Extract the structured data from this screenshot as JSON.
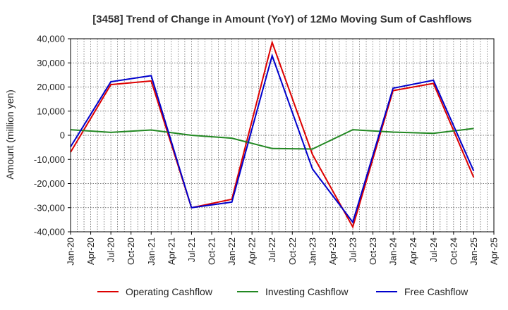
{
  "chart_data": {
    "type": "line",
    "title": "[3458]  Trend of Change in Amount (YoY) of 12Mo Moving Sum of Cashflows",
    "xlabel": "",
    "ylabel": "Amount (million yen)",
    "ylim": [
      -40000,
      40000
    ],
    "yticks": [
      40000,
      30000,
      20000,
      10000,
      0,
      -10000,
      -20000,
      -30000,
      -40000
    ],
    "ytick_labels": [
      "40,000",
      "30,000",
      "20,000",
      "10,000",
      "0",
      "-10,000",
      "-20,000",
      "-30,000",
      "-40,000"
    ],
    "xticks": [
      "Jan-20",
      "Apr-20",
      "Jul-20",
      "Oct-20",
      "Jan-21",
      "Apr-21",
      "Jul-21",
      "Oct-21",
      "Jan-22",
      "Apr-22",
      "Jul-22",
      "Oct-22",
      "Jan-23",
      "Apr-23",
      "Jul-23",
      "Oct-23",
      "Jan-24",
      "Apr-24",
      "Jul-24",
      "Oct-24",
      "Jan-25",
      "Apr-25"
    ],
    "grid": true,
    "legend_position": "bottom",
    "x_index": [
      0,
      2,
      4,
      6,
      8,
      10,
      12,
      14,
      16,
      18,
      20
    ],
    "series": [
      {
        "name": "Operating Cashflow",
        "color": "#dd0000",
        "values": [
          -7000,
          21000,
          22500,
          -30000,
          -26500,
          38500,
          -8000,
          -38000,
          18500,
          21500,
          -17500
        ]
      },
      {
        "name": "Investing Cashflow",
        "color": "#228822",
        "values": [
          2300,
          1200,
          2200,
          0,
          -1200,
          -5500,
          -5700,
          2300,
          1300,
          800,
          2800
        ]
      },
      {
        "name": "Free Cashflow",
        "color": "#0000cc",
        "values": [
          -4800,
          22200,
          24700,
          -30000,
          -27700,
          33000,
          -14000,
          -36000,
          19500,
          22800,
          -14800
        ]
      }
    ]
  }
}
